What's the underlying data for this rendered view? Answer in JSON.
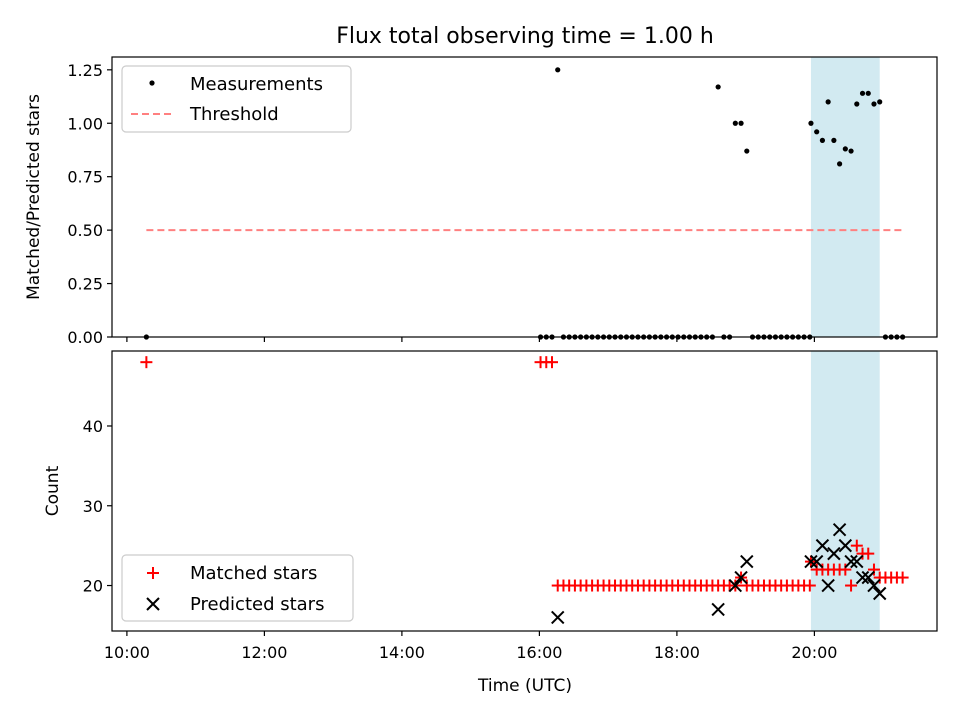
{
  "chart_data": [
    {
      "type": "scatter",
      "title": "Flux total observing time = 1.00 h",
      "xlabel": "",
      "ylabel": "Matched/Predicted stars",
      "xlim": [
        "09:47",
        "21:47"
      ],
      "ylim": [
        0,
        1.31
      ],
      "yticks": [
        "0.00",
        "0.25",
        "0.50",
        "0.75",
        "1.00",
        "1.25"
      ],
      "highlight_span": {
        "start": "19:57",
        "end": "20:57",
        "color": "#add8e6"
      },
      "legend": {
        "position": "upper left",
        "entries": [
          "Measurements",
          "Threshold"
        ]
      },
      "series": [
        {
          "name": "Measurements",
          "marker": "dot",
          "color": "#000000",
          "points": [
            [
              "10:17",
              0
            ],
            [
              "16:01",
              0
            ],
            [
              "16:06",
              0
            ],
            [
              "16:11",
              0
            ],
            [
              "16:16",
              1.25
            ],
            [
              "16:21",
              0
            ],
            [
              "16:26",
              0
            ],
            [
              "16:31",
              0
            ],
            [
              "16:36",
              0
            ],
            [
              "16:41",
              0
            ],
            [
              "16:46",
              0
            ],
            [
              "16:51",
              0
            ],
            [
              "16:56",
              0
            ],
            [
              "17:01",
              0
            ],
            [
              "17:06",
              0
            ],
            [
              "17:11",
              0
            ],
            [
              "17:16",
              0
            ],
            [
              "17:21",
              0
            ],
            [
              "17:26",
              0
            ],
            [
              "17:31",
              0
            ],
            [
              "17:36",
              0
            ],
            [
              "17:41",
              0
            ],
            [
              "17:46",
              0
            ],
            [
              "17:51",
              0
            ],
            [
              "17:56",
              0
            ],
            [
              "18:01",
              0
            ],
            [
              "18:06",
              0
            ],
            [
              "18:11",
              0
            ],
            [
              "18:16",
              0
            ],
            [
              "18:21",
              0
            ],
            [
              "18:26",
              0
            ],
            [
              "18:31",
              0
            ],
            [
              "18:36",
              1.17
            ],
            [
              "18:41",
              0
            ],
            [
              "18:46",
              0
            ],
            [
              "18:51",
              1.0
            ],
            [
              "18:56",
              1.0
            ],
            [
              "19:01",
              0.87
            ],
            [
              "19:06",
              0
            ],
            [
              "19:11",
              0
            ],
            [
              "19:16",
              0
            ],
            [
              "19:21",
              0
            ],
            [
              "19:26",
              0
            ],
            [
              "19:31",
              0
            ],
            [
              "19:36",
              0
            ],
            [
              "19:41",
              0
            ],
            [
              "19:46",
              0
            ],
            [
              "19:51",
              0
            ],
            [
              "19:56",
              0
            ],
            [
              "19:57",
              1.0
            ],
            [
              "20:02",
              0.96
            ],
            [
              "20:07",
              0.92
            ],
            [
              "20:12",
              1.1
            ],
            [
              "20:17",
              0.92
            ],
            [
              "20:22",
              0.81
            ],
            [
              "20:27",
              0.88
            ],
            [
              "20:32",
              0.87
            ],
            [
              "20:37",
              1.09
            ],
            [
              "20:42",
              1.14
            ],
            [
              "20:47",
              1.14
            ],
            [
              "20:52",
              1.09
            ],
            [
              "20:57",
              1.1
            ],
            [
              "21:02",
              0
            ],
            [
              "21:07",
              0
            ],
            [
              "21:12",
              0
            ],
            [
              "21:17",
              0
            ]
          ]
        },
        {
          "name": "Threshold",
          "type": "line",
          "style": "dashed",
          "color": "#ff8080",
          "points": [
            [
              "10:17",
              0.5
            ],
            [
              "21:17",
              0.5
            ]
          ]
        }
      ]
    },
    {
      "type": "scatter",
      "xlabel": "Time (UTC)",
      "ylabel": "Count",
      "xlim": [
        "09:47",
        "21:47"
      ],
      "ylim": [
        14.3,
        49.4
      ],
      "xticks": [
        "10:00",
        "12:00",
        "14:00",
        "16:00",
        "18:00",
        "20:00"
      ],
      "yticks": [
        "20",
        "30",
        "40"
      ],
      "highlight_span": {
        "start": "19:57",
        "end": "20:57",
        "color": "#add8e6"
      },
      "legend": {
        "position": "lower left",
        "entries": [
          "Matched stars",
          "Predicted stars"
        ]
      },
      "series": [
        {
          "name": "Matched stars",
          "marker": "plus",
          "color": "#ff0000",
          "points": [
            [
              "10:17",
              48
            ],
            [
              "16:01",
              48
            ],
            [
              "16:06",
              48
            ],
            [
              "16:11",
              48
            ],
            [
              "16:16",
              20
            ],
            [
              "16:21",
              20
            ],
            [
              "16:26",
              20
            ],
            [
              "16:31",
              20
            ],
            [
              "16:36",
              20
            ],
            [
              "16:41",
              20
            ],
            [
              "16:46",
              20
            ],
            [
              "16:51",
              20
            ],
            [
              "16:56",
              20
            ],
            [
              "17:01",
              20
            ],
            [
              "17:06",
              20
            ],
            [
              "17:11",
              20
            ],
            [
              "17:16",
              20
            ],
            [
              "17:21",
              20
            ],
            [
              "17:26",
              20
            ],
            [
              "17:31",
              20
            ],
            [
              "17:36",
              20
            ],
            [
              "17:41",
              20
            ],
            [
              "17:46",
              20
            ],
            [
              "17:51",
              20
            ],
            [
              "17:56",
              20
            ],
            [
              "18:01",
              20
            ],
            [
              "18:06",
              20
            ],
            [
              "18:11",
              20
            ],
            [
              "18:16",
              20
            ],
            [
              "18:21",
              20
            ],
            [
              "18:26",
              20
            ],
            [
              "18:31",
              20
            ],
            [
              "18:36",
              20
            ],
            [
              "18:41",
              20
            ],
            [
              "18:46",
              20
            ],
            [
              "18:51",
              20
            ],
            [
              "18:56",
              21
            ],
            [
              "19:01",
              20
            ],
            [
              "19:06",
              20
            ],
            [
              "19:11",
              20
            ],
            [
              "19:16",
              20
            ],
            [
              "19:21",
              20
            ],
            [
              "19:26",
              20
            ],
            [
              "19:31",
              20
            ],
            [
              "19:36",
              20
            ],
            [
              "19:41",
              20
            ],
            [
              "19:46",
              20
            ],
            [
              "19:51",
              20
            ],
            [
              "19:56",
              20
            ],
            [
              "19:57",
              23
            ],
            [
              "20:02",
              22
            ],
            [
              "20:07",
              22
            ],
            [
              "20:12",
              22
            ],
            [
              "20:17",
              22
            ],
            [
              "20:22",
              22
            ],
            [
              "20:27",
              22
            ],
            [
              "20:32",
              20
            ],
            [
              "20:37",
              25
            ],
            [
              "20:42",
              24
            ],
            [
              "20:47",
              24
            ],
            [
              "20:52",
              22
            ],
            [
              "20:57",
              21
            ],
            [
              "21:02",
              21
            ],
            [
              "21:07",
              21
            ],
            [
              "21:12",
              21
            ],
            [
              "21:17",
              21
            ]
          ]
        },
        {
          "name": "Predicted stars",
          "marker": "x",
          "color": "#000000",
          "points": [
            [
              "16:16",
              16
            ],
            [
              "18:36",
              17
            ],
            [
              "18:51",
              20
            ],
            [
              "18:56",
              21
            ],
            [
              "19:01",
              23
            ],
            [
              "19:57",
              23
            ],
            [
              "20:02",
              23
            ],
            [
              "20:07",
              25
            ],
            [
              "20:12",
              20
            ],
            [
              "20:17",
              24
            ],
            [
              "20:22",
              27
            ],
            [
              "20:27",
              25
            ],
            [
              "20:32",
              23
            ],
            [
              "20:37",
              23
            ],
            [
              "20:42",
              21
            ],
            [
              "20:47",
              21
            ],
            [
              "20:52",
              20
            ],
            [
              "20:57",
              19
            ]
          ]
        }
      ]
    }
  ]
}
